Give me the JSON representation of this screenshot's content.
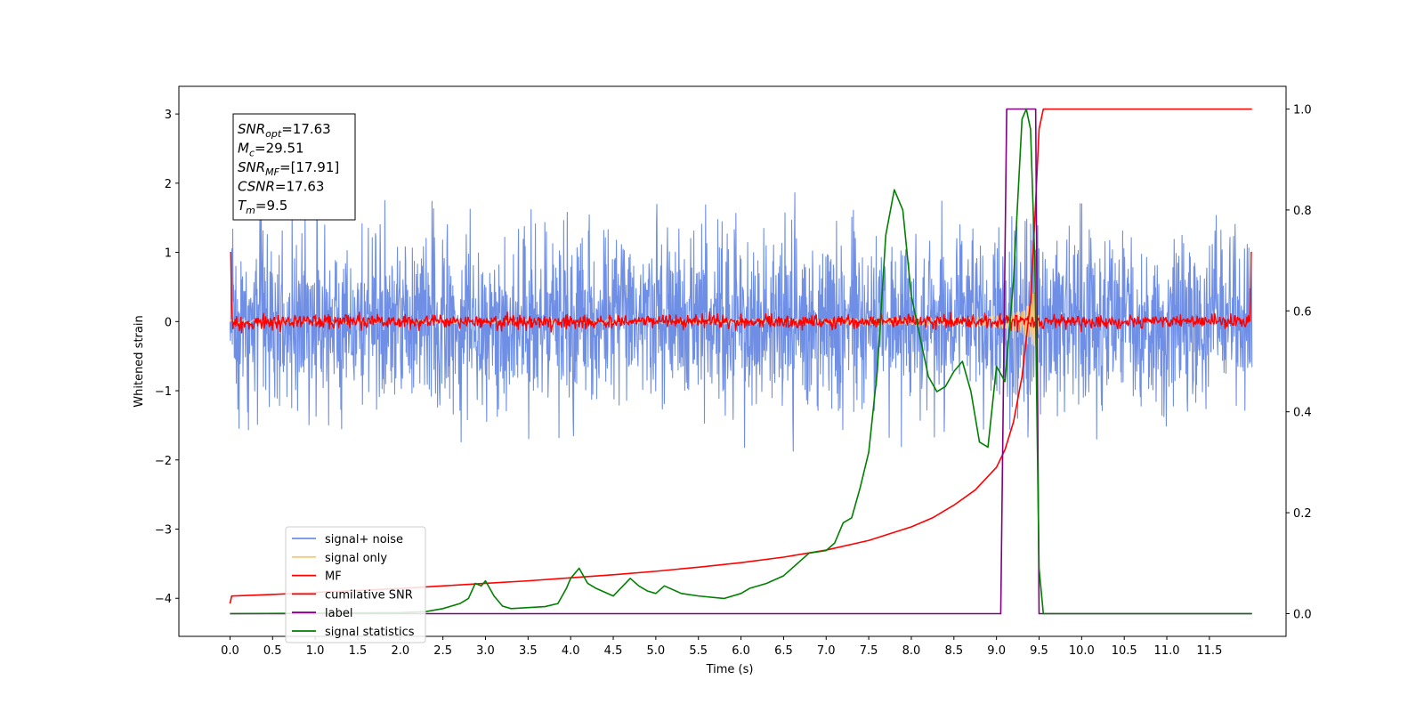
{
  "chart_data": {
    "type": "line",
    "xlabel": "Time (s)",
    "ylabel": "Whitened strain",
    "xlim": [
      -0.6,
      12.4
    ],
    "ylim": [
      -4.55,
      3.4
    ],
    "y2lim": [
      -0.045,
      1.045
    ],
    "x_ticks": [
      "0.0",
      "0.5",
      "1.0",
      "1.5",
      "2.0",
      "2.5",
      "3.0",
      "3.5",
      "4.0",
      "4.5",
      "5.0",
      "5.5",
      "6.0",
      "6.5",
      "7.0",
      "7.5",
      "8.0",
      "8.5",
      "9.0",
      "9.5",
      "10.0",
      "10.5",
      "11.0",
      "11.5"
    ],
    "y_ticks": [
      "3",
      "2",
      "1",
      "0",
      "−1",
      "−2",
      "−3",
      "−4"
    ],
    "y2_ticks": [
      "1.0",
      "0.8",
      "0.6",
      "0.4",
      "0.2",
      "0.0"
    ],
    "grid": false,
    "legend_position": "lower-left",
    "annotation": [
      {
        "base": "SNR",
        "sub": "opt",
        "value": "=17.63"
      },
      {
        "base": "M",
        "sub": "c",
        "value": "=29.51"
      },
      {
        "base": "SNR",
        "sub": "MF",
        "value": "=[17.91]"
      },
      {
        "base": "CSNR",
        "sub": "",
        "value": "=17.63"
      },
      {
        "base": "T",
        "sub": "m",
        "value": "=9.5"
      }
    ],
    "series": [
      {
        "name": "signal+ noise",
        "color": "#6f8fe6",
        "axis": "left",
        "style": "noise",
        "x_range": [
          0,
          12
        ],
        "std": 0.62
      },
      {
        "name": "signal only",
        "color": "#f7c87a",
        "axis": "left",
        "style": "chirp",
        "x_range": [
          0,
          9.5
        ],
        "merger": 9.5,
        "peak_amplitude": 1.3
      },
      {
        "name": "MF",
        "color": "#ff0000",
        "axis": "left",
        "style": "mf",
        "x_range": [
          0,
          12
        ],
        "std": 0.05,
        "edge_value": 1.0
      },
      {
        "name": "cumilative SNR",
        "color": "#ff0000",
        "axis": "right",
        "x": [
          0,
          0.02,
          0.5,
          1,
          1.5,
          2,
          2.5,
          3,
          3.5,
          4,
          4.5,
          5,
          5.5,
          6,
          6.5,
          7,
          7.5,
          8,
          8.25,
          8.5,
          8.75,
          9,
          9.1,
          9.2,
          9.3,
          9.4,
          9.45,
          9.5,
          9.55,
          10,
          11,
          12
        ],
        "y": [
          0.02,
          0.035,
          0.038,
          0.042,
          0.046,
          0.05,
          0.055,
          0.06,
          0.065,
          0.071,
          0.077,
          0.084,
          0.092,
          0.101,
          0.112,
          0.126,
          0.145,
          0.172,
          0.19,
          0.215,
          0.245,
          0.29,
          0.325,
          0.38,
          0.47,
          0.62,
          0.78,
          0.96,
          1.0,
          1.0,
          1.0,
          1.0
        ]
      },
      {
        "name": "label",
        "color": "#800080",
        "axis": "right",
        "x": [
          0,
          9.05,
          9.12,
          9.46,
          9.5,
          12
        ],
        "y": [
          0,
          0,
          1,
          1,
          0,
          0
        ]
      },
      {
        "name": "signal statistics",
        "color": "#008000",
        "axis": "right",
        "x": [
          0,
          2.0,
          2.3,
          2.5,
          2.7,
          2.8,
          2.88,
          2.95,
          3.0,
          3.1,
          3.2,
          3.3,
          3.5,
          3.7,
          3.85,
          3.95,
          4.0,
          4.1,
          4.2,
          4.3,
          4.5,
          4.7,
          4.8,
          4.9,
          5.0,
          5.1,
          5.3,
          5.5,
          5.8,
          6.0,
          6.1,
          6.3,
          6.5,
          6.6,
          6.8,
          7.0,
          7.1,
          7.2,
          7.3,
          7.4,
          7.5,
          7.6,
          7.7,
          7.8,
          7.9,
          8.0,
          8.1,
          8.2,
          8.3,
          8.4,
          8.5,
          8.6,
          8.7,
          8.8,
          8.9,
          9.0,
          9.1,
          9.2,
          9.3,
          9.35,
          9.4,
          9.45,
          9.5,
          9.55,
          9.6,
          12
        ],
        "y": [
          0,
          0.002,
          0.004,
          0.01,
          0.02,
          0.03,
          0.06,
          0.055,
          0.065,
          0.035,
          0.015,
          0.01,
          0.012,
          0.014,
          0.02,
          0.05,
          0.07,
          0.09,
          0.06,
          0.05,
          0.035,
          0.07,
          0.055,
          0.045,
          0.04,
          0.055,
          0.04,
          0.035,
          0.03,
          0.04,
          0.05,
          0.06,
          0.075,
          0.09,
          0.12,
          0.125,
          0.14,
          0.18,
          0.19,
          0.25,
          0.32,
          0.48,
          0.75,
          0.84,
          0.8,
          0.63,
          0.55,
          0.47,
          0.44,
          0.45,
          0.48,
          0.5,
          0.44,
          0.34,
          0.33,
          0.49,
          0.46,
          0.66,
          0.98,
          1.0,
          0.96,
          0.7,
          0.09,
          0.0,
          0.0,
          0.0
        ]
      }
    ]
  }
}
